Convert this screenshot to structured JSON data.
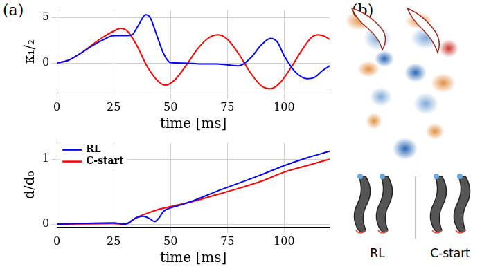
{
  "panels": {
    "a": "(a)",
    "b": "(b)",
    "b_labels": [
      "RL",
      "C-start"
    ]
  },
  "chart_data": [
    {
      "type": "line",
      "xlabel": "time [ms]",
      "ylabel": "κ₁/₂",
      "xlim": [
        0,
        120
      ],
      "xticks": [
        0,
        25,
        50,
        75,
        100
      ],
      "ylim": [
        -3.3,
        5.8
      ],
      "yticks": [
        0,
        5
      ],
      "grid": true,
      "series": [
        {
          "name": "RL",
          "color": "#0000ff",
          "x": [
            0,
            5,
            10,
            15,
            20,
            25,
            30,
            33,
            36,
            39,
            41,
            44,
            47,
            50,
            55,
            60,
            65,
            70,
            75,
            80,
            85,
            90,
            94,
            97,
            100,
            105,
            110,
            113,
            117,
            120
          ],
          "values": [
            0,
            0.3,
            1.0,
            1.8,
            2.5,
            3.0,
            3.0,
            3.1,
            4.2,
            5.3,
            5.0,
            3.0,
            1.0,
            0.05,
            0,
            -0.05,
            -0.1,
            -0.1,
            -0.2,
            -0.3,
            0.5,
            2.0,
            2.7,
            2.3,
            0.8,
            -1.0,
            -1.7,
            -1.6,
            -0.8,
            -0.3
          ]
        },
        {
          "name": "C-start",
          "color": "#ff0000",
          "x": [
            0,
            5,
            10,
            15,
            20,
            25,
            28,
            31,
            35,
            40,
            45,
            48,
            52,
            57,
            62,
            67,
            71,
            75,
            80,
            85,
            90,
            94,
            98,
            103,
            108,
            112,
            115,
            118,
            120
          ],
          "values": [
            0,
            0.3,
            1.0,
            1.9,
            2.8,
            3.5,
            3.8,
            3.5,
            2.0,
            -0.5,
            -2.1,
            -2.4,
            -1.8,
            -0.2,
            1.6,
            2.8,
            3.1,
            2.6,
            1.0,
            -1.0,
            -2.5,
            -2.8,
            -2.2,
            -0.5,
            1.5,
            2.8,
            3.1,
            2.9,
            2.6
          ]
        }
      ]
    },
    {
      "type": "line",
      "xlabel": "time [ms]",
      "ylabel": "d/d₀",
      "xlim": [
        0,
        120
      ],
      "xticks": [
        0,
        25,
        50,
        75,
        100
      ],
      "ylim": [
        -0.05,
        1.25
      ],
      "yticks": [
        0,
        1
      ],
      "grid": true,
      "legend": "upper left",
      "series": [
        {
          "name": "RL",
          "color": "#0000ff",
          "x": [
            0,
            25,
            30,
            35,
            38,
            41,
            43,
            45,
            47,
            50,
            55,
            60,
            70,
            80,
            90,
            100,
            110,
            120
          ],
          "values": [
            0,
            0.02,
            0.0,
            0.1,
            0.12,
            0.08,
            0.04,
            0.1,
            0.2,
            0.25,
            0.3,
            0.36,
            0.5,
            0.63,
            0.76,
            0.9,
            1.02,
            1.12
          ]
        },
        {
          "name": "C-start",
          "color": "#ff0000",
          "x": [
            0,
            25,
            30,
            35,
            40,
            45,
            50,
            55,
            60,
            70,
            80,
            90,
            100,
            110,
            120
          ],
          "values": [
            0,
            0.01,
            0.0,
            0.1,
            0.17,
            0.23,
            0.27,
            0.31,
            0.35,
            0.45,
            0.55,
            0.66,
            0.8,
            0.9,
            1.0
          ]
        }
      ]
    }
  ]
}
